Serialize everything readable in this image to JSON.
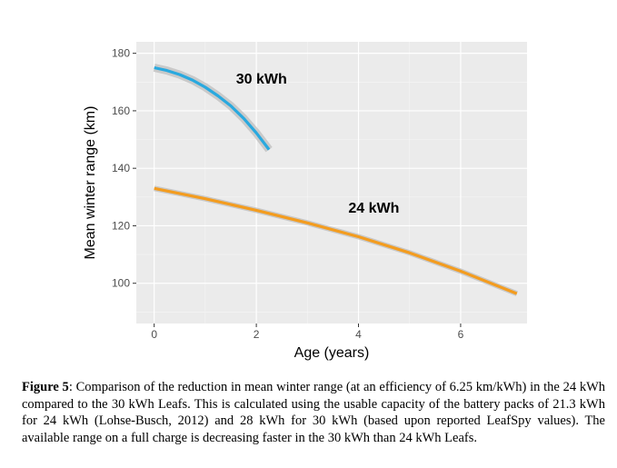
{
  "chart_data": {
    "type": "line",
    "title": "",
    "xlabel": "Age (years)",
    "ylabel": "Mean winter range (km)",
    "xlim": [
      -0.35,
      7.3
    ],
    "ylim": [
      86,
      184
    ],
    "x_ticks": [
      0,
      2,
      4,
      6
    ],
    "y_ticks": [
      100,
      120,
      140,
      160,
      180
    ],
    "grid": true,
    "series": [
      {
        "name": "30 kWh",
        "color": "#29a9df",
        "x": [
          0,
          0.25,
          0.5,
          0.75,
          1.0,
          1.25,
          1.5,
          1.75,
          2.0,
          2.25
        ],
        "y": [
          175.0,
          174.0,
          172.6,
          170.7,
          168.2,
          165.2,
          161.7,
          157.4,
          152.3,
          146.5
        ]
      },
      {
        "name": "24 kWh",
        "color": "#f39c1f",
        "x": [
          0,
          1,
          2,
          3,
          4,
          5,
          6,
          7.1
        ],
        "y": [
          133.0,
          129.4,
          125.4,
          121.0,
          116.2,
          110.6,
          104.2,
          96.4
        ]
      }
    ]
  },
  "caption": {
    "label": "Figure 5",
    "text": ": Comparison of the reduction in mean winter range (at an efficiency of 6.25 km/kWh) in the 24 kWh compared to the 30 kWh Leafs.  This is calculated using the usable capacity of the battery packs of 21.3 kWh for 24 kWh (Lohse-Busch, 2012) and 28 kWh for 30 kWh (based upon reported LeafSpy values).  The available range on a full charge is decreasing faster in the 30 kWh than 24 kWh Leafs."
  }
}
